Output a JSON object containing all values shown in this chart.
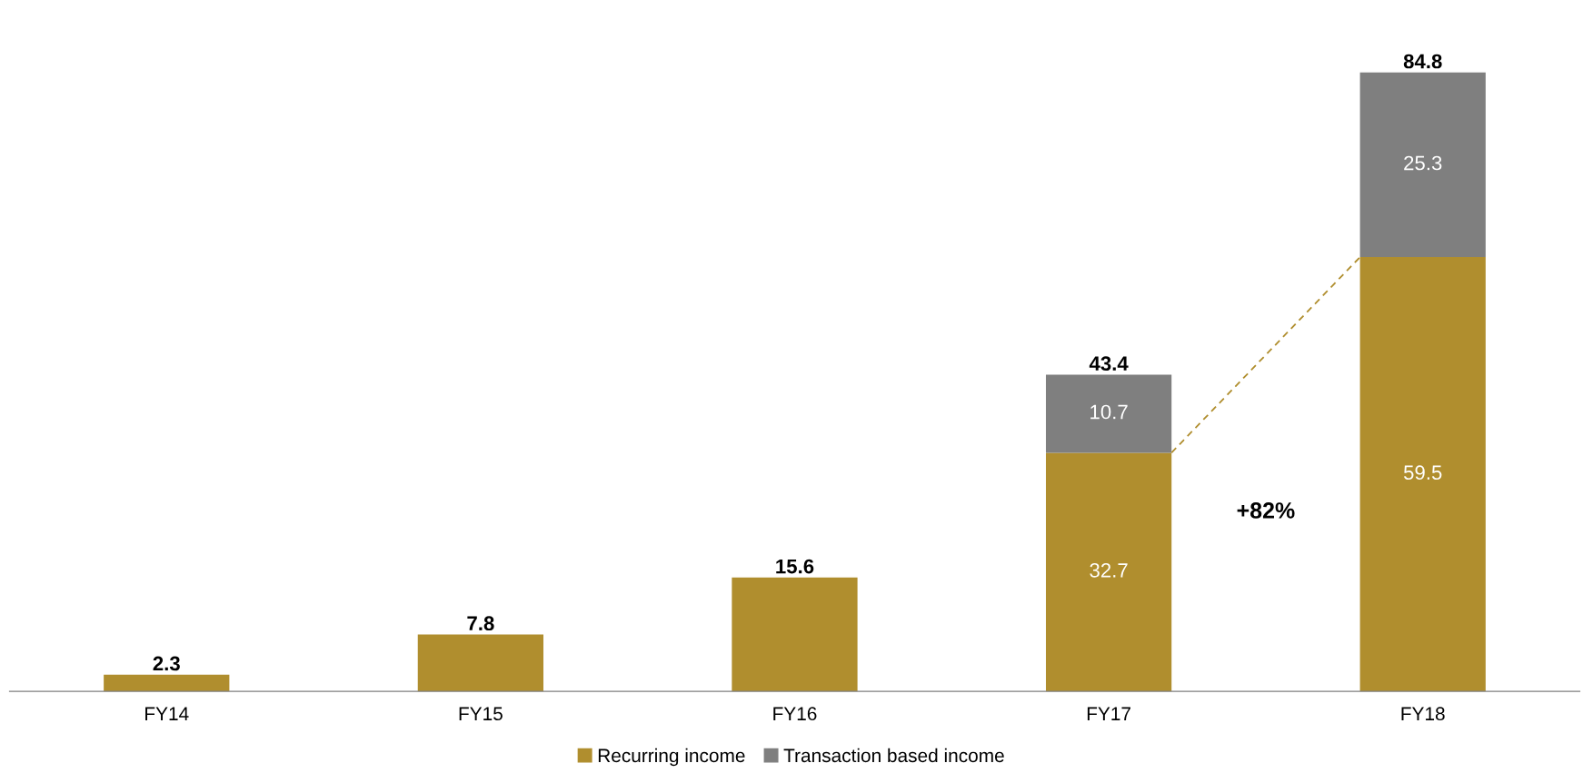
{
  "chart_data": {
    "type": "bar",
    "stacked": true,
    "categories": [
      "FY14",
      "FY15",
      "FY16",
      "FY17",
      "FY18"
    ],
    "series": [
      {
        "name": "Recurring income",
        "color": "#b08e2e",
        "values": [
          2.3,
          7.8,
          15.6,
          32.7,
          59.5
        ],
        "value_labels": [
          null,
          null,
          null,
          "32.7",
          "59.5"
        ]
      },
      {
        "name": "Transaction based income",
        "color": "#7f7f7f",
        "values": [
          null,
          null,
          null,
          10.7,
          25.3
        ],
        "value_labels": [
          null,
          null,
          null,
          "10.7",
          "25.3"
        ]
      }
    ],
    "totals": [
      "2.3",
      "7.8",
      "15.6",
      "43.4",
      "84.8"
    ],
    "annotations": [
      "+82%"
    ],
    "legend": "bottom",
    "grid": false
  }
}
